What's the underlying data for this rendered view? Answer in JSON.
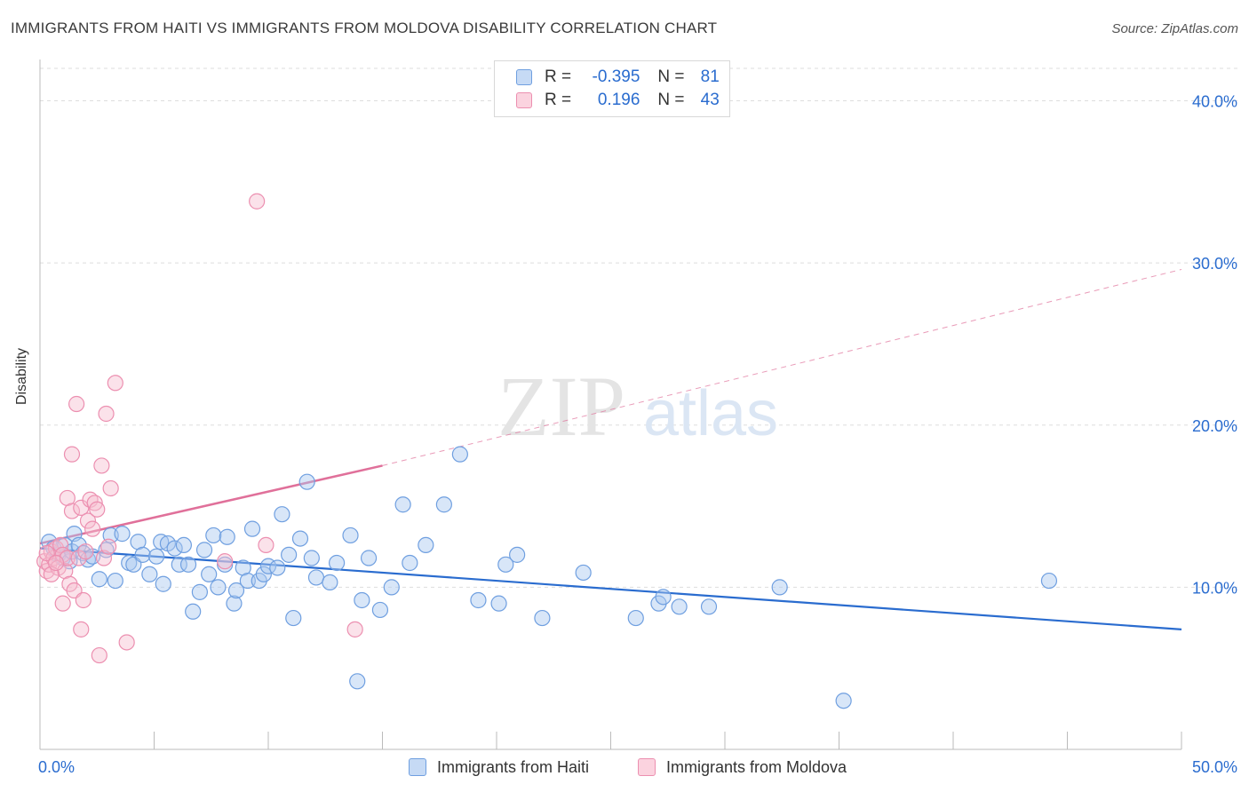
{
  "title": "IMMIGRANTS FROM HAITI VS IMMIGRANTS FROM MOLDOVA DISABILITY CORRELATION CHART",
  "source": "Source: ZipAtlas.com",
  "watermark": {
    "zip": "ZIP",
    "atlas": "atlas"
  },
  "colors": {
    "haiti_fill": "#a9c8f0",
    "haiti_stroke": "#6f9fe0",
    "haiti_line": "#2a6ccf",
    "moldova_fill": "#f7bfd0",
    "moldova_stroke": "#ec8fb0",
    "moldova_line": "#e0709a",
    "axis_label": "#2a6ccf",
    "grid": "#dddddd"
  },
  "legend": {
    "haiti": {
      "r_label": "R =",
      "r_value": "-0.395",
      "n_label": "N =",
      "n_value": "81"
    },
    "moldova": {
      "r_label": "R =",
      "r_value": "0.196",
      "n_label": "N =",
      "n_value": "43"
    }
  },
  "chart_data": {
    "type": "scatter",
    "title": "IMMIGRANTS FROM HAITI VS IMMIGRANTS FROM MOLDOVA DISABILITY CORRELATION CHART",
    "xlabel": "",
    "ylabel": "Disability",
    "xlim": [
      0,
      50
    ],
    "ylim": [
      0,
      42
    ],
    "x_tick_labels": [
      "0.0%",
      "50.0%"
    ],
    "y_ticks": [
      10,
      20,
      30,
      40
    ],
    "y_tick_labels": [
      "10.0%",
      "20.0%",
      "30.0%",
      "40.0%"
    ],
    "grid": true,
    "legend_position": "top-center",
    "series": [
      {
        "name": "Immigrants from Haiti",
        "points": [
          [
            0.4,
            12.8
          ],
          [
            0.6,
            12.4
          ],
          [
            0.8,
            12.0
          ],
          [
            1.0,
            11.8
          ],
          [
            1.1,
            12.6
          ],
          [
            1.3,
            11.6
          ],
          [
            1.4,
            12.2
          ],
          [
            1.5,
            13.3
          ],
          [
            1.7,
            12.6
          ],
          [
            1.9,
            12.1
          ],
          [
            2.1,
            11.7
          ],
          [
            2.3,
            11.9
          ],
          [
            2.6,
            10.5
          ],
          [
            2.9,
            12.3
          ],
          [
            3.1,
            13.2
          ],
          [
            3.3,
            10.4
          ],
          [
            3.6,
            13.3
          ],
          [
            3.9,
            11.5
          ],
          [
            4.1,
            11.4
          ],
          [
            4.3,
            12.8
          ],
          [
            4.5,
            12.0
          ],
          [
            4.8,
            10.8
          ],
          [
            5.1,
            11.9
          ],
          [
            5.3,
            12.8
          ],
          [
            5.4,
            10.2
          ],
          [
            5.6,
            12.7
          ],
          [
            5.9,
            12.4
          ],
          [
            6.1,
            11.4
          ],
          [
            6.3,
            12.6
          ],
          [
            6.5,
            11.4
          ],
          [
            6.7,
            8.5
          ],
          [
            7.0,
            9.7
          ],
          [
            7.2,
            12.3
          ],
          [
            7.4,
            10.8
          ],
          [
            7.6,
            13.2
          ],
          [
            7.8,
            10.0
          ],
          [
            8.1,
            11.4
          ],
          [
            8.2,
            13.1
          ],
          [
            8.5,
            9.0
          ],
          [
            8.6,
            9.8
          ],
          [
            8.9,
            11.2
          ],
          [
            9.1,
            10.4
          ],
          [
            9.3,
            13.6
          ],
          [
            9.6,
            10.4
          ],
          [
            9.8,
            10.8
          ],
          [
            10.0,
            11.3
          ],
          [
            10.4,
            11.2
          ],
          [
            10.6,
            14.5
          ],
          [
            10.9,
            12.0
          ],
          [
            11.1,
            8.1
          ],
          [
            11.4,
            13.0
          ],
          [
            11.7,
            16.5
          ],
          [
            11.9,
            11.8
          ],
          [
            12.1,
            10.6
          ],
          [
            12.7,
            10.3
          ],
          [
            13.0,
            11.5
          ],
          [
            13.6,
            13.2
          ],
          [
            13.9,
            4.2
          ],
          [
            14.1,
            9.2
          ],
          [
            14.4,
            11.8
          ],
          [
            14.9,
            8.6
          ],
          [
            15.4,
            10.0
          ],
          [
            15.9,
            15.1
          ],
          [
            16.2,
            11.5
          ],
          [
            16.9,
            12.6
          ],
          [
            17.7,
            15.1
          ],
          [
            18.4,
            18.2
          ],
          [
            19.2,
            9.2
          ],
          [
            20.1,
            9.0
          ],
          [
            20.4,
            11.4
          ],
          [
            20.9,
            12.0
          ],
          [
            22.0,
            8.1
          ],
          [
            23.8,
            10.9
          ],
          [
            26.1,
            8.1
          ],
          [
            27.1,
            9.0
          ],
          [
            27.3,
            9.4
          ],
          [
            28.0,
            8.8
          ],
          [
            29.3,
            8.8
          ],
          [
            32.4,
            10.0
          ],
          [
            35.2,
            3.0
          ],
          [
            44.2,
            10.4
          ]
        ],
        "trend": [
          [
            0,
            12.4
          ],
          [
            50,
            7.4
          ]
        ]
      },
      {
        "name": "Immigrants from Moldova",
        "points": [
          [
            0.2,
            11.6
          ],
          [
            0.3,
            11.0
          ],
          [
            0.4,
            11.4
          ],
          [
            0.5,
            12.2
          ],
          [
            0.6,
            11.8
          ],
          [
            0.7,
            12.4
          ],
          [
            0.8,
            11.2
          ],
          [
            0.9,
            12.6
          ],
          [
            1.0,
            12.0
          ],
          [
            1.0,
            9.0
          ],
          [
            1.1,
            11.0
          ],
          [
            1.2,
            11.8
          ],
          [
            1.2,
            15.5
          ],
          [
            1.3,
            10.2
          ],
          [
            1.4,
            18.2
          ],
          [
            1.4,
            14.7
          ],
          [
            1.5,
            9.8
          ],
          [
            1.6,
            21.3
          ],
          [
            1.7,
            11.8
          ],
          [
            1.8,
            14.9
          ],
          [
            1.8,
            7.4
          ],
          [
            1.9,
            9.2
          ],
          [
            2.0,
            12.2
          ],
          [
            2.1,
            14.1
          ],
          [
            2.2,
            15.4
          ],
          [
            2.3,
            13.6
          ],
          [
            2.4,
            15.2
          ],
          [
            2.5,
            14.8
          ],
          [
            2.6,
            5.8
          ],
          [
            2.7,
            17.5
          ],
          [
            2.8,
            11.8
          ],
          [
            2.9,
            20.7
          ],
          [
            3.0,
            12.5
          ],
          [
            3.1,
            16.1
          ],
          [
            3.3,
            22.6
          ],
          [
            3.8,
            6.6
          ],
          [
            8.1,
            11.6
          ],
          [
            9.5,
            33.8
          ],
          [
            9.9,
            12.6
          ],
          [
            13.8,
            7.4
          ],
          [
            0.3,
            12.1
          ],
          [
            0.5,
            10.8
          ],
          [
            0.7,
            11.5
          ]
        ],
        "trend": [
          [
            0,
            12.7
          ],
          [
            15,
            17.5
          ]
        ],
        "trend_extension": [
          [
            15,
            17.5
          ],
          [
            50,
            29.6
          ]
        ]
      }
    ]
  }
}
